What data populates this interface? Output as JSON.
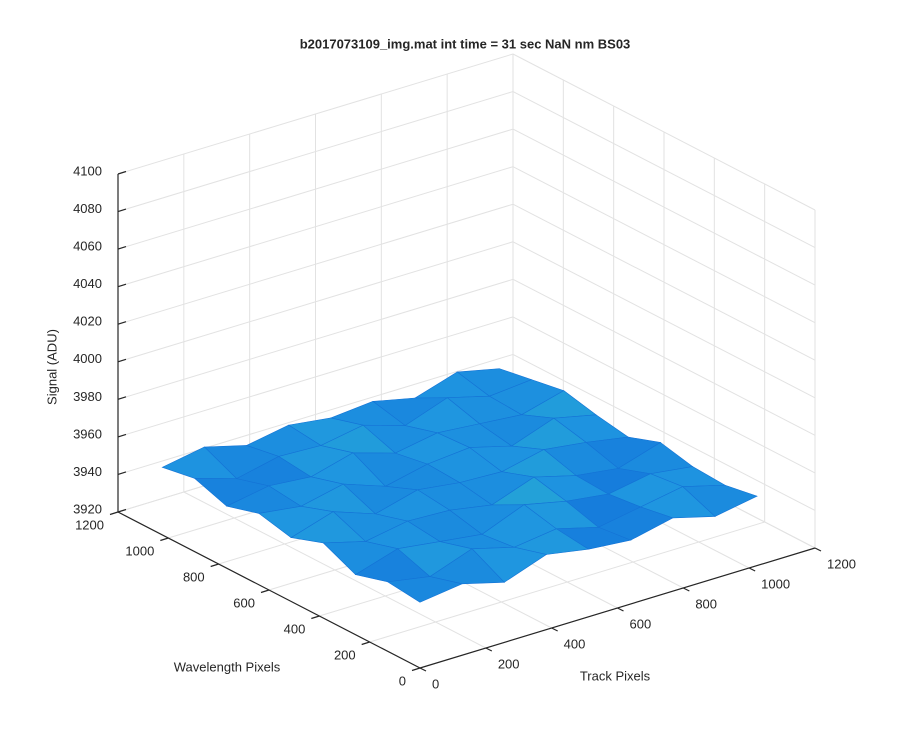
{
  "chart_data": {
    "type": "surface",
    "title": "b2017073109_img.mat int time = 31 sec  NaN nm BS03",
    "x_label": "Track Pixels",
    "y_label": "Wavelength Pixels",
    "z_label": "Signal (ADU)",
    "x": [
      0,
      128,
      256,
      384,
      512,
      640,
      768,
      896,
      1024
    ],
    "y": [
      0,
      128,
      256,
      384,
      512,
      640,
      768,
      896,
      1024
    ],
    "z": [
      [
        3955,
        3958,
        3952,
        3960,
        3956,
        3954,
        3959,
        3953,
        3957
      ],
      [
        3957,
        3953,
        3961,
        3955,
        3958,
        3952,
        3956,
        3960,
        3954
      ],
      [
        3952,
        3959,
        3956,
        3953,
        3962,
        3957,
        3954,
        3958,
        3955
      ],
      [
        3960,
        3954,
        3958,
        3957,
        3953,
        3961,
        3955,
        3952,
        3959
      ],
      [
        3954,
        3961,
        3953,
        3959,
        3956,
        3955,
        3960,
        3957,
        3953
      ],
      [
        3958,
        3955,
        3960,
        3952,
        3957,
        3959,
        3953,
        3961,
        3956
      ],
      [
        3953,
        3957,
        3955,
        3961,
        3954,
        3958,
        3956,
        3954,
        3960
      ],
      [
        3959,
        3952,
        3957,
        3956,
        3960,
        3953,
        3961,
        3955,
        3957
      ],
      [
        3956,
        3960,
        3954,
        3958,
        3955,
        3957,
        3952,
        3959,
        3954
      ]
    ],
    "xlim": [
      0,
      1200
    ],
    "xticks": [
      0,
      200,
      400,
      600,
      800,
      1000,
      1200
    ],
    "ylim": [
      0,
      1200
    ],
    "yticks": [
      0,
      200,
      400,
      600,
      800,
      1000,
      1200
    ],
    "zlim": [
      3920,
      4100
    ],
    "zticks": [
      3920,
      3940,
      3960,
      3980,
      4000,
      4020,
      4040,
      4060,
      4080,
      4100
    ],
    "grid": true,
    "colormap": [
      "#0a5ed8",
      "#1f96e0",
      "#2fc0bf"
    ]
  }
}
